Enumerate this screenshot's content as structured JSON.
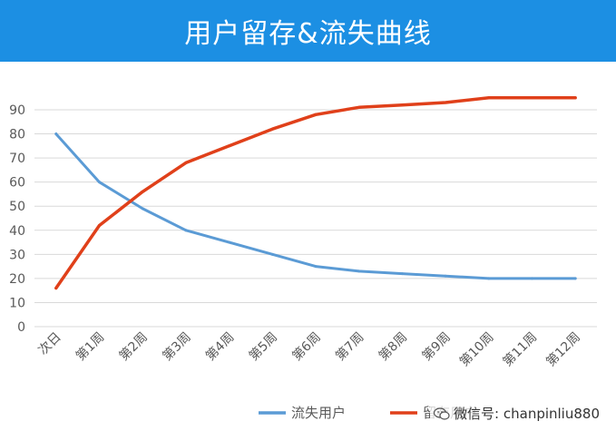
{
  "title": "用户留存&流失曲线",
  "watermark": "微信号: chanpinliu880",
  "colors": {
    "title_bg": "#1c8fe3",
    "lost_series": "#5b9bd5",
    "retained_series": "#e0401a",
    "grid": "#d9d9d9",
    "tick_label": "#595959"
  },
  "chart_data": {
    "type": "line",
    "title": "",
    "xlabel": "",
    "ylabel": "",
    "ylim": [
      0,
      90
    ],
    "yticks": [
      0,
      10,
      20,
      30,
      40,
      50,
      60,
      70,
      80,
      90
    ],
    "grid": true,
    "legend_position": "bottom-center",
    "categories": [
      "次日",
      "第1周",
      "第2周",
      "第3周",
      "第4周",
      "第5周",
      "第6周",
      "第7周",
      "第8周",
      "第9周",
      "第10周",
      "第11周",
      "第12周"
    ],
    "series": [
      {
        "name": "流失用户",
        "color": "#5b9bd5",
        "values": [
          80,
          60,
          49,
          40,
          35,
          30,
          25,
          23,
          22,
          21,
          20,
          20,
          20
        ]
      },
      {
        "name": "留存用户",
        "color": "#e0401a",
        "values": [
          16,
          42,
          56,
          68,
          75,
          82,
          88,
          91,
          92,
          93,
          95,
          95,
          95
        ]
      }
    ]
  }
}
